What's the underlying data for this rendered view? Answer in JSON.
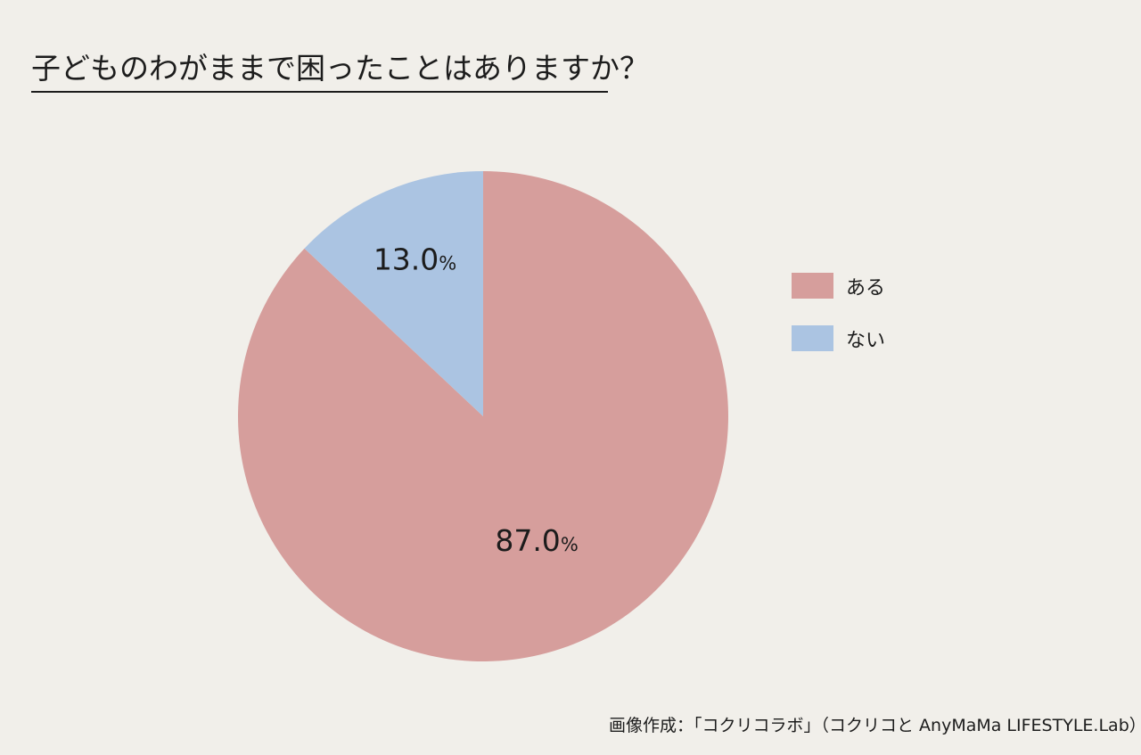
{
  "title": "子どものわがままで困ったことはありますか？",
  "source": "画像作成：「コクリコラボ」（コクリコと AnyMaMa LIFESTYLE.Lab）",
  "chart_data": {
    "type": "pie",
    "title": "子どものわがままで困ったことはありますか？",
    "slices": [
      {
        "label": "ある",
        "value": 87.0,
        "display": "87.0",
        "unit": "%",
        "color": "#d69e9c"
      },
      {
        "label": "ない",
        "value": 13.0,
        "display": "13.0",
        "unit": "%",
        "color": "#abc4e2"
      }
    ],
    "legend_position": "right",
    "start": "top",
    "direction": "clockwise"
  }
}
